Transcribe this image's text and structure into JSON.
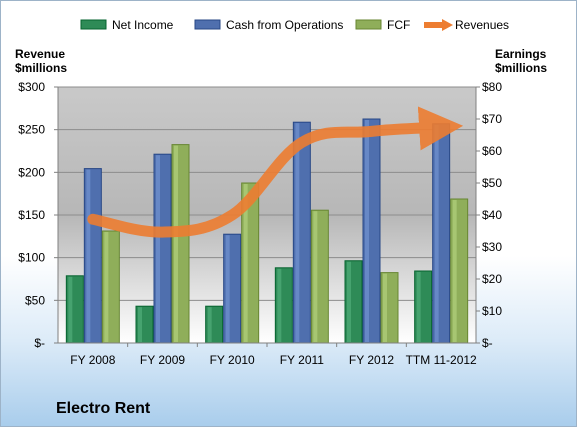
{
  "company_name": "Electro Rent",
  "chart_data": {
    "type": "bar",
    "categories": [
      "FY 2008",
      "FY 2009",
      "FY 2010",
      "FY 2011",
      "FY 2012",
      "TTM 11-2012"
    ],
    "left_axis": {
      "title_line1": "Revenue",
      "title_line2": "$millions",
      "ylim": [
        0,
        300
      ],
      "ticks": [
        0,
        50,
        100,
        150,
        200,
        250,
        300
      ],
      "tick_labels": [
        "$-",
        "$50",
        "$100",
        "$150",
        "$200",
        "$250",
        "$300"
      ]
    },
    "right_axis": {
      "title_line1": "Earnings",
      "title_line2": "$millions",
      "ylim": [
        0,
        80
      ],
      "ticks": [
        0,
        10,
        20,
        30,
        40,
        50,
        60,
        70,
        80
      ],
      "tick_labels": [
        "$-",
        "$10",
        "$20",
        "$30",
        "$40",
        "$50",
        "$60",
        "$70",
        "$80"
      ]
    },
    "series": [
      {
        "name": "Net Income",
        "type": "bar",
        "axis": "right",
        "color": "#2e8b57",
        "values": [
          21,
          11.5,
          11.5,
          23.5,
          25.7,
          22.5
        ]
      },
      {
        "name": "Cash from Operations",
        "type": "bar",
        "axis": "right",
        "color": "#4f6fae",
        "values": [
          54.5,
          59,
          34,
          69,
          70,
          68.5
        ]
      },
      {
        "name": "FCF",
        "type": "bar",
        "axis": "right",
        "color": "#8fae5a",
        "values": [
          35,
          62,
          50,
          41.5,
          22,
          45
        ]
      },
      {
        "name": "Revenues",
        "type": "line",
        "axis": "left",
        "color": "#ed7d31",
        "values": [
          145,
          130,
          150,
          235,
          248,
          253
        ]
      }
    ],
    "legend_position": "top",
    "grid": true
  }
}
